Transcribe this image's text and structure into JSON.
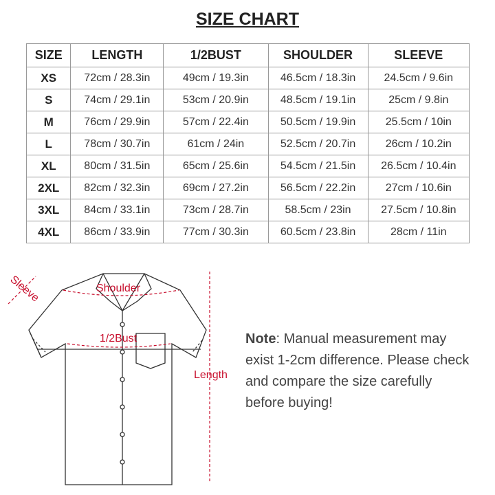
{
  "title": "SIZE CHART",
  "table": {
    "header": [
      "SIZE",
      "LENGTH",
      "1/2BUST",
      "SHOULDER",
      "SLEEVE"
    ],
    "rows": [
      [
        "XS",
        "72cm / 28.3in",
        "49cm / 19.3in",
        "46.5cm / 18.3in",
        "24.5cm / 9.6in"
      ],
      [
        "S",
        "74cm / 29.1in",
        "53cm / 20.9in",
        "48.5cm / 19.1in",
        "25cm / 9.8in"
      ],
      [
        "M",
        "76cm / 29.9in",
        "57cm / 22.4in",
        "50.5cm / 19.9in",
        "25.5cm / 10in"
      ],
      [
        "L",
        "78cm / 30.7in",
        "61cm / 24in",
        "52.5cm / 20.7in",
        "26cm / 10.2in"
      ],
      [
        "XL",
        "80cm / 31.5in",
        "65cm / 25.6in",
        "54.5cm / 21.5in",
        "26.5cm / 10.4in"
      ],
      [
        "2XL",
        "82cm / 32.3in",
        "69cm / 27.2in",
        "56.5cm / 22.2in",
        "27cm / 10.6in"
      ],
      [
        "3XL",
        "84cm / 33.1in",
        "73cm / 28.7in",
        "58.5cm / 23in",
        "27.5cm / 10.8in"
      ],
      [
        "4XL",
        "86cm / 33.9in",
        "77cm / 30.3in",
        "60.5cm / 23.8in",
        "28cm / 11in"
      ]
    ]
  },
  "diagram": {
    "sleeve": "Sleeve",
    "shoulder": "Shoulder",
    "bust": "1/2Bust",
    "length": "Length"
  },
  "note": {
    "label": "Note",
    "text": ": Manual measurement may exist 1-2cm difference. Please check and compare the size carefully before buying!"
  }
}
